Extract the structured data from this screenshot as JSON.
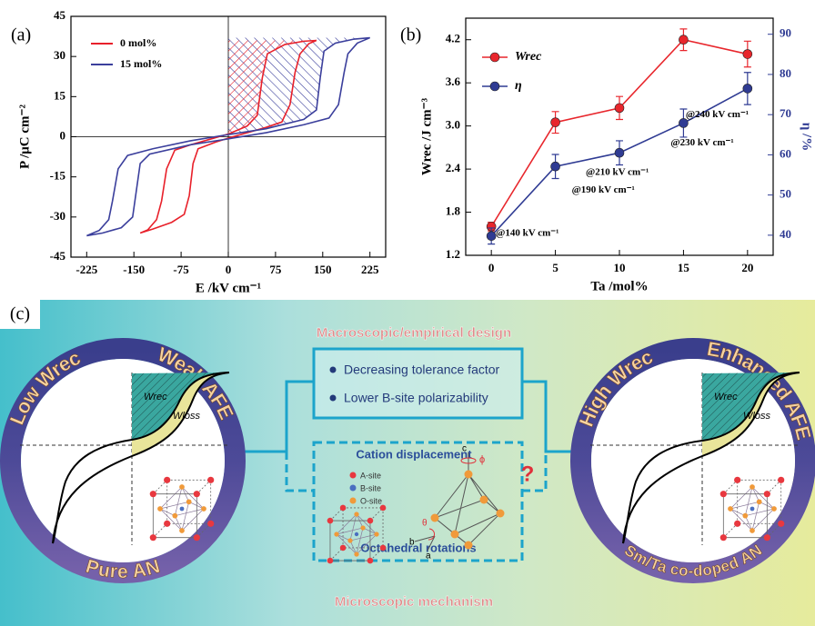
{
  "chart_data": [
    {
      "type": "line",
      "panel": "(a)",
      "x_label": "E /kV cm⁻¹",
      "y_label": "P /μC cm⁻²",
      "xlim": [
        -250,
        250
      ],
      "xticks": [
        -225,
        -150,
        -75,
        0,
        75,
        150,
        225
      ],
      "ylim": [
        -45,
        45
      ],
      "yticks": [
        -45,
        -30,
        -15,
        0,
        15,
        30,
        45
      ],
      "hatch": true,
      "series": [
        {
          "name": "0 mol%",
          "color": "#e8202a",
          "x": [
            -140,
            -120,
            -90,
            -70,
            -62,
            -56,
            -48,
            -20,
            0,
            30,
            60,
            85,
            98,
            106,
            114,
            128,
            140,
            120,
            90,
            62,
            54,
            46,
            30,
            0,
            -30,
            -60,
            -85,
            -98,
            -106,
            -114,
            -128,
            -140
          ],
          "values": [
            -36,
            -34.5,
            -32,
            -29,
            -22,
            -10,
            -4.5,
            -2,
            -0.5,
            1.5,
            3.5,
            5.5,
            12,
            24,
            31,
            34.8,
            36,
            35.7,
            34.5,
            31,
            22,
            8,
            4,
            1,
            -1,
            -3,
            -5,
            -12,
            -24,
            -31,
            -34.8,
            -36
          ]
        },
        {
          "name": "15 mol%",
          "color": "#3b3f9c",
          "x": [
            -225,
            -200,
            -170,
            -152,
            -146,
            -140,
            -125,
            -60,
            0,
            60,
            120,
            160,
            175,
            184,
            190,
            205,
            225,
            200,
            170,
            152,
            146,
            140,
            120,
            60,
            0,
            -60,
            -120,
            -160,
            -175,
            -184,
            -190,
            -205,
            -225
          ],
          "values": [
            -37,
            -36,
            -34,
            -30,
            -20,
            -10,
            -6.5,
            -3,
            -0.8,
            1.5,
            4.5,
            7,
            12,
            24,
            31,
            35,
            37,
            36.5,
            35,
            32,
            22,
            10,
            6.5,
            3,
            0.8,
            -1.5,
            -4.5,
            -7,
            -12,
            -24,
            -31,
            -35,
            -37
          ]
        }
      ]
    },
    {
      "type": "errorline",
      "panel": "(b)",
      "x_label": "Ta /mol%",
      "y_label": "Wrec /J cm⁻³",
      "y2_label": "η /%",
      "x": [
        0,
        5,
        10,
        15,
        20
      ],
      "xlim": [
        -2,
        22
      ],
      "xticks": [
        0,
        5,
        10,
        15,
        20
      ],
      "ylim": [
        1.2,
        4.5
      ],
      "yticks": [
        1.2,
        1.8,
        2.4,
        {
          "value": 3,
          "label": "3.0"
        },
        3.6,
        4.2
      ],
      "y2lim": [
        35,
        94
      ],
      "y2ticks": [
        40,
        50,
        60,
        70,
        80,
        90
      ],
      "series": [
        {
          "name": "Wrec",
          "color": "#e8262c",
          "values": [
            1.6,
            3.05,
            3.25,
            4.2,
            4.0
          ],
          "errors": [
            0.06,
            0.15,
            0.16,
            0.15,
            0.18
          ]
        },
        {
          "name": "η",
          "color": "#2f3b93",
          "axis": "y2",
          "values": [
            39.8,
            57.1,
            60.5,
            67.9,
            76.5
          ],
          "errors": [
            2,
            3,
            3,
            3.5,
            4
          ],
          "annotations": [
            "@140 kV cm⁻¹",
            "@190 kV cm⁻¹",
            "@210 kV cm⁻¹",
            "@230 kV cm⁻¹",
            "@240 kV cm⁻¹"
          ]
        }
      ]
    }
  ],
  "diagram": {
    "label": "(c)",
    "left": {
      "low": "Low Wrec",
      "afe": "Weak AFE",
      "material": "Pure AN",
      "w_rec": "Wrec",
      "w_loss": "Wloss"
    },
    "right": {
      "low": "High Wrec",
      "afe": "Enhanced AFE",
      "material": "Sm/Ta co-doped AN",
      "w_rec": "Wrec",
      "w_loss": "Wloss"
    },
    "macro": {
      "title": "Macroscopic/empirical design",
      "items": [
        "Decreasing tolerance factor",
        "Lower B-site polarizability"
      ]
    },
    "micro": {
      "title": "Microscopic mechanism",
      "displacement": "Cation displacement",
      "sites": [
        "A-site",
        "B-site",
        "O-site"
      ],
      "rotations": "Octahedral rotations",
      "axes": [
        "c",
        "b",
        "a"
      ],
      "angles": [
        "θ",
        "ϕ"
      ]
    },
    "question": "?"
  }
}
